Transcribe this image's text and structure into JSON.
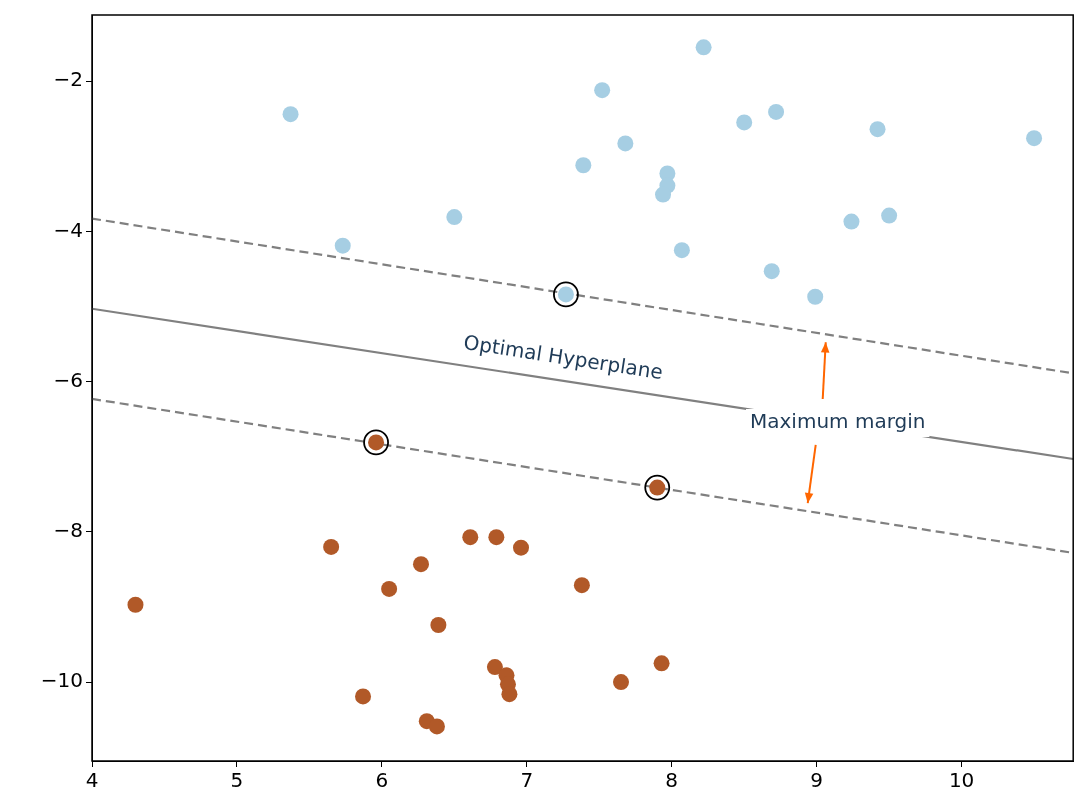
{
  "chart_data": {
    "type": "scatter",
    "xlim": [
      4,
      10.77
    ],
    "ylim": [
      -11.05,
      -1.12
    ],
    "xticks": [
      4,
      5,
      6,
      7,
      8,
      9,
      10
    ],
    "yticks": [
      -10,
      -8,
      -6,
      -4,
      -2
    ],
    "grid": false,
    "legend": false,
    "marker": "circle",
    "series": [
      {
        "color": "#a6cee3",
        "x": [
          5.37,
          5.73,
          6.5,
          7.52,
          7.39,
          7.68,
          7.27,
          7.97,
          7.97,
          7.94,
          8.07,
          8.22,
          8.5,
          8.72,
          8.69,
          8.99,
          9.24,
          9.42,
          9.5,
          10.5
        ],
        "values": [
          -2.44,
          -4.19,
          -3.81,
          -2.12,
          -3.12,
          -2.83,
          -4.84,
          -3.23,
          -3.39,
          -3.51,
          -4.25,
          -1.55,
          -2.55,
          -2.41,
          -4.53,
          -4.87,
          -3.87,
          -2.64,
          -3.79,
          -2.76
        ]
      },
      {
        "color": "#b15928",
        "x": [
          4.3,
          5.65,
          5.96,
          6.05,
          5.87,
          6.27,
          6.39,
          6.31,
          6.38,
          6.61,
          6.79,
          6.96,
          6.78,
          6.86,
          6.87,
          6.88,
          7.38,
          7.65,
          7.93,
          7.9
        ],
        "values": [
          -8.97,
          -8.2,
          -6.81,
          -8.76,
          -10.19,
          -8.43,
          -9.24,
          -10.52,
          -10.59,
          -8.07,
          -8.07,
          -8.21,
          -9.8,
          -9.91,
          -10.03,
          -10.16,
          -8.71,
          -10.0,
          -9.75,
          -7.41
        ]
      },
      {
        "color": "#000000",
        "x": [
          7.27,
          5.96,
          7.9
        ],
        "values": [
          -4.84,
          -6.81,
          -7.41
        ]
      },
      {
        "type": "line",
        "color": "#808080",
        "line_style": "dashed",
        "marker": "none",
        "x": [
          4,
          10.77
        ],
        "values": [
          -3.83,
          -5.89
        ]
      },
      {
        "type": "line",
        "color": "#808080",
        "line_style": "solid",
        "marker": "none",
        "x": [
          4,
          10.77
        ],
        "values": [
          -5.03,
          -7.03
        ]
      },
      {
        "type": "line",
        "color": "#808080",
        "line_style": "dashed",
        "marker": "none",
        "x": [
          4,
          10.77
        ],
        "values": [
          -6.23,
          -8.28
        ]
      }
    ],
    "annotations": [
      "Optimal Hyperplane",
      "Maximum margin"
    ]
  }
}
